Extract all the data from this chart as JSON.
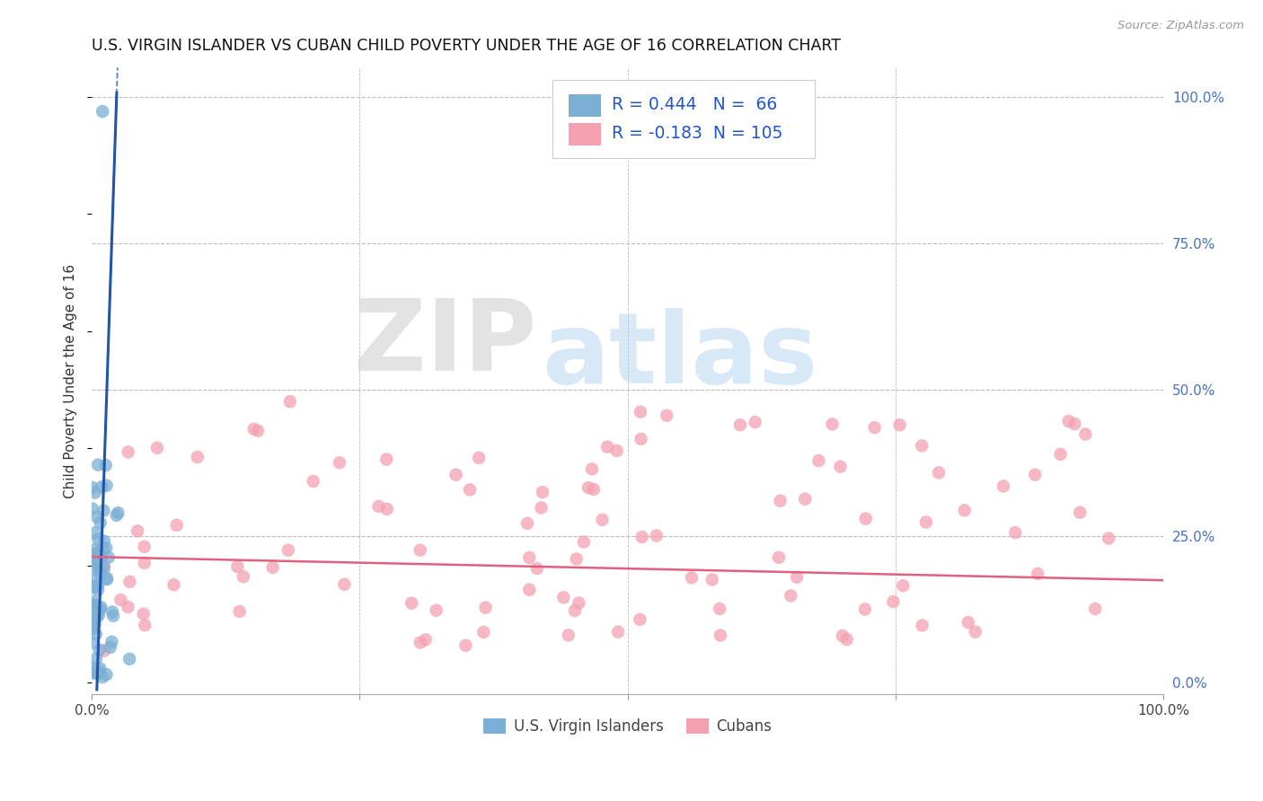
{
  "title": "U.S. VIRGIN ISLANDER VS CUBAN CHILD POVERTY UNDER THE AGE OF 16 CORRELATION CHART",
  "source": "Source: ZipAtlas.com",
  "ylabel": "Child Poverty Under the Age of 16",
  "xlim": [
    0.0,
    1.0
  ],
  "ylim": [
    -0.02,
    1.05
  ],
  "xticks": [
    0.0,
    0.25,
    0.5,
    0.75,
    1.0
  ],
  "xticklabels": [
    "0.0%",
    "",
    "",
    "",
    "100.0%"
  ],
  "yticks_right": [
    0.0,
    0.25,
    0.5,
    0.75,
    1.0
  ],
  "yticklabels_right": [
    "0.0%",
    "25.0%",
    "50.0%",
    "75.0%",
    "100.0%"
  ],
  "blue_color": "#7BAFD4",
  "pink_color": "#F4A0B0",
  "blue_line_color": "#2255AA",
  "pink_line_color": "#E06080",
  "legend_text_color": "#2255CC",
  "R_blue": 0.444,
  "N_blue": 66,
  "R_pink": -0.183,
  "N_pink": 105,
  "watermark_ZIP": "ZIP",
  "watermark_atlas": "atlas",
  "background_color": "#FFFFFF",
  "grid_color": "#BBBBBB",
  "title_fontsize": 12.5,
  "axis_label_fontsize": 11,
  "blue_scatter_seed": 10,
  "pink_scatter_seed": 7
}
